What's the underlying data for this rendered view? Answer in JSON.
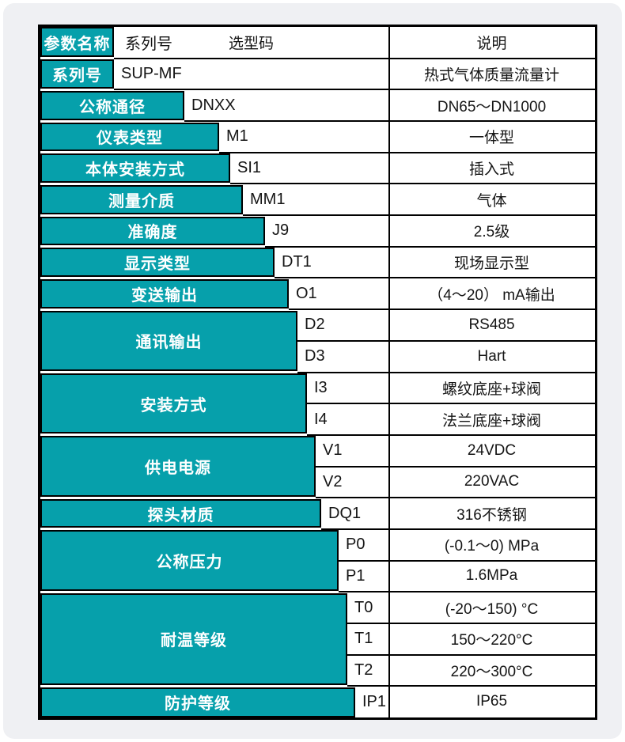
{
  "colors": {
    "teal": "#06a0ab",
    "border": "#000000",
    "backdrop": "#eff0f3",
    "text": "#151515"
  },
  "header": {
    "param_label": "参数名称",
    "series_label": "系列号",
    "code_label": "选型码",
    "desc_label": "说明"
  },
  "series": {
    "label": "系列号",
    "code": "SUP-MF",
    "desc": "热式气体质量流量计"
  },
  "groups": [
    {
      "label": "公称通径",
      "rows": [
        {
          "code": "DNXX",
          "desc": "DN65～DN1000"
        }
      ]
    },
    {
      "label": "仪表类型",
      "rows": [
        {
          "code": "M1",
          "desc": "一体型"
        }
      ]
    },
    {
      "label": "本体安装方式",
      "rows": [
        {
          "code": "SI1",
          "desc": "插入式"
        }
      ]
    },
    {
      "label": "测量介质",
      "rows": [
        {
          "code": "MM1",
          "desc": "气体"
        }
      ]
    },
    {
      "label": "准确度",
      "rows": [
        {
          "code": "J9",
          "desc": "2.5级"
        }
      ]
    },
    {
      "label": "显示类型",
      "rows": [
        {
          "code": "DT1",
          "desc": "现场显示型"
        }
      ]
    },
    {
      "label": "变送输出",
      "rows": [
        {
          "code": "O1",
          "desc": "（4～20） mA输出"
        }
      ]
    },
    {
      "label": "通讯输出",
      "rows": [
        {
          "code": "D2",
          "desc": "RS485"
        },
        {
          "code": "D3",
          "desc": "Hart"
        }
      ]
    },
    {
      "label": "安装方式",
      "rows": [
        {
          "code": "I3",
          "desc": "螺纹底座+球阀"
        },
        {
          "code": "I4",
          "desc": "法兰底座+球阀"
        }
      ]
    },
    {
      "label": "供电电源",
      "rows": [
        {
          "code": "V1",
          "desc": "24VDC"
        },
        {
          "code": "V2",
          "desc": "220VAC"
        }
      ]
    },
    {
      "label": "探头材质",
      "rows": [
        {
          "code": "DQ1",
          "desc": "316不锈钢"
        }
      ]
    },
    {
      "label": "公称压力",
      "rows": [
        {
          "code": "P0",
          "desc": "(-0.1～0) MPa"
        },
        {
          "code": "P1",
          "desc": "1.6MPa"
        }
      ]
    },
    {
      "label": "耐温等级",
      "rows": [
        {
          "code": "T0",
          "desc": "(-20～150) °C"
        },
        {
          "code": "T1",
          "desc": "150～220°C"
        },
        {
          "code": "T2",
          "desc": "220～300°C"
        }
      ]
    },
    {
      "label": "防护等级",
      "rows": [
        {
          "code": "IP1",
          "desc": "IP65"
        }
      ]
    }
  ]
}
